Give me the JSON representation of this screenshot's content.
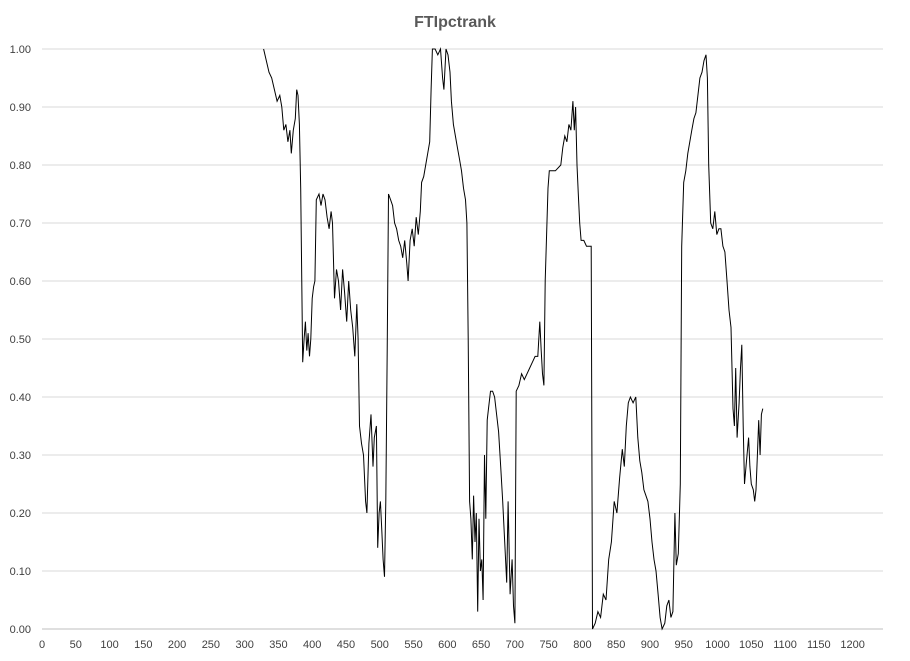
{
  "chart_data": {
    "type": "line",
    "title": "FTIpctrank",
    "xlabel": "",
    "ylabel": "",
    "xlim": [
      0,
      1245
    ],
    "ylim": [
      0,
      1
    ],
    "grid": true,
    "legend": "none",
    "x_ticks": [
      "0",
      "50",
      "100",
      "150",
      "200",
      "250",
      "300",
      "350",
      "400",
      "450",
      "500",
      "550",
      "600",
      "650",
      "700",
      "750",
      "800",
      "850",
      "900",
      "950",
      "1000",
      "1050",
      "1100",
      "1150",
      "1200"
    ],
    "y_ticks": [
      "0.00",
      "0.10",
      "0.20",
      "0.30",
      "0.40",
      "0.50",
      "0.60",
      "0.70",
      "0.80",
      "0.90",
      "1.00"
    ],
    "series": [
      {
        "color": "#000000",
        "points": [
          [
            328,
            1.0
          ],
          [
            332,
            0.98
          ],
          [
            336,
            0.96
          ],
          [
            340,
            0.95
          ],
          [
            344,
            0.93
          ],
          [
            348,
            0.91
          ],
          [
            352,
            0.92
          ],
          [
            355,
            0.9
          ],
          [
            358,
            0.86
          ],
          [
            361,
            0.87
          ],
          [
            364,
            0.84
          ],
          [
            367,
            0.86
          ],
          [
            369,
            0.82
          ],
          [
            372,
            0.86
          ],
          [
            375,
            0.88
          ],
          [
            377,
            0.93
          ],
          [
            379,
            0.92
          ],
          [
            381,
            0.87
          ],
          [
            383,
            0.76
          ],
          [
            385,
            0.55
          ],
          [
            386,
            0.46
          ],
          [
            388,
            0.5
          ],
          [
            390,
            0.53
          ],
          [
            392,
            0.48
          ],
          [
            394,
            0.51
          ],
          [
            396,
            0.47
          ],
          [
            398,
            0.5
          ],
          [
            400,
            0.57
          ],
          [
            402,
            0.59
          ],
          [
            404,
            0.6
          ],
          [
            406,
            0.74
          ],
          [
            410,
            0.75
          ],
          [
            413,
            0.73
          ],
          [
            416,
            0.75
          ],
          [
            419,
            0.74
          ],
          [
            422,
            0.71
          ],
          [
            425,
            0.69
          ],
          [
            428,
            0.72
          ],
          [
            430,
            0.7
          ],
          [
            433,
            0.57
          ],
          [
            436,
            0.62
          ],
          [
            439,
            0.6
          ],
          [
            442,
            0.55
          ],
          [
            445,
            0.62
          ],
          [
            448,
            0.58
          ],
          [
            451,
            0.53
          ],
          [
            454,
            0.6
          ],
          [
            457,
            0.55
          ],
          [
            460,
            0.52
          ],
          [
            463,
            0.47
          ],
          [
            466,
            0.56
          ],
          [
            468,
            0.5
          ],
          [
            470,
            0.35
          ],
          [
            473,
            0.32
          ],
          [
            476,
            0.3
          ],
          [
            479,
            0.22
          ],
          [
            481,
            0.2
          ],
          [
            484,
            0.32
          ],
          [
            487,
            0.37
          ],
          [
            490,
            0.28
          ],
          [
            492,
            0.33
          ],
          [
            495,
            0.35
          ],
          [
            497,
            0.14
          ],
          [
            499,
            0.2
          ],
          [
            501,
            0.22
          ],
          [
            503,
            0.17
          ],
          [
            505,
            0.12
          ],
          [
            507,
            0.09
          ],
          [
            509,
            0.22
          ],
          [
            511,
            0.48
          ],
          [
            513,
            0.75
          ],
          [
            516,
            0.74
          ],
          [
            519,
            0.73
          ],
          [
            522,
            0.7
          ],
          [
            525,
            0.69
          ],
          [
            528,
            0.67
          ],
          [
            531,
            0.66
          ],
          [
            534,
            0.64
          ],
          [
            537,
            0.67
          ],
          [
            540,
            0.63
          ],
          [
            542,
            0.6
          ],
          [
            545,
            0.67
          ],
          [
            548,
            0.69
          ],
          [
            551,
            0.66
          ],
          [
            554,
            0.71
          ],
          [
            557,
            0.68
          ],
          [
            560,
            0.72
          ],
          [
            562,
            0.77
          ],
          [
            565,
            0.78
          ],
          [
            568,
            0.8
          ],
          [
            571,
            0.82
          ],
          [
            574,
            0.84
          ],
          [
            576,
            0.93
          ],
          [
            578,
            1.0
          ],
          [
            582,
            1.0
          ],
          [
            586,
            0.99
          ],
          [
            590,
            1.0
          ],
          [
            593,
            0.95
          ],
          [
            595,
            0.93
          ],
          [
            598,
            1.0
          ],
          [
            601,
            0.99
          ],
          [
            604,
            0.96
          ],
          [
            606,
            0.91
          ],
          [
            609,
            0.87
          ],
          [
            612,
            0.85
          ],
          [
            615,
            0.83
          ],
          [
            618,
            0.81
          ],
          [
            621,
            0.79
          ],
          [
            624,
            0.76
          ],
          [
            627,
            0.74
          ],
          [
            629,
            0.7
          ],
          [
            631,
            0.5
          ],
          [
            633,
            0.22
          ],
          [
            635,
            0.19
          ],
          [
            637,
            0.12
          ],
          [
            639,
            0.23
          ],
          [
            641,
            0.15
          ],
          [
            643,
            0.2
          ],
          [
            645,
            0.03
          ],
          [
            647,
            0.19
          ],
          [
            649,
            0.1
          ],
          [
            651,
            0.12
          ],
          [
            653,
            0.05
          ],
          [
            655,
            0.3
          ],
          [
            657,
            0.19
          ],
          [
            659,
            0.36
          ],
          [
            661,
            0.38
          ],
          [
            664,
            0.41
          ],
          [
            667,
            0.41
          ],
          [
            670,
            0.4
          ],
          [
            673,
            0.37
          ],
          [
            676,
            0.34
          ],
          [
            679,
            0.28
          ],
          [
            682,
            0.22
          ],
          [
            685,
            0.15
          ],
          [
            688,
            0.08
          ],
          [
            690,
            0.22
          ],
          [
            693,
            0.06
          ],
          [
            696,
            0.12
          ],
          [
            698,
            0.04
          ],
          [
            700,
            0.01
          ],
          [
            702,
            0.41
          ],
          [
            706,
            0.42
          ],
          [
            710,
            0.44
          ],
          [
            714,
            0.43
          ],
          [
            718,
            0.44
          ],
          [
            722,
            0.45
          ],
          [
            726,
            0.46
          ],
          [
            730,
            0.47
          ],
          [
            734,
            0.47
          ],
          [
            737,
            0.53
          ],
          [
            739,
            0.48
          ],
          [
            741,
            0.44
          ],
          [
            743,
            0.42
          ],
          [
            745,
            0.6
          ],
          [
            747,
            0.68
          ],
          [
            749,
            0.76
          ],
          [
            751,
            0.79
          ],
          [
            760,
            0.79
          ],
          [
            768,
            0.8
          ],
          [
            771,
            0.83
          ],
          [
            774,
            0.85
          ],
          [
            777,
            0.84
          ],
          [
            780,
            0.87
          ],
          [
            783,
            0.86
          ],
          [
            786,
            0.91
          ],
          [
            788,
            0.86
          ],
          [
            790,
            0.9
          ],
          [
            792,
            0.8
          ],
          [
            794,
            0.75
          ],
          [
            796,
            0.7
          ],
          [
            798,
            0.67
          ],
          [
            802,
            0.67
          ],
          [
            806,
            0.66
          ],
          [
            810,
            0.66
          ],
          [
            813,
            0.66
          ],
          [
            815,
            0.0
          ],
          [
            819,
            0.01
          ],
          [
            823,
            0.03
          ],
          [
            827,
            0.02
          ],
          [
            831,
            0.06
          ],
          [
            835,
            0.05
          ],
          [
            839,
            0.12
          ],
          [
            843,
            0.15
          ],
          [
            847,
            0.22
          ],
          [
            851,
            0.2
          ],
          [
            855,
            0.26
          ],
          [
            859,
            0.31
          ],
          [
            862,
            0.28
          ],
          [
            865,
            0.35
          ],
          [
            868,
            0.39
          ],
          [
            871,
            0.4
          ],
          [
            875,
            0.39
          ],
          [
            879,
            0.4
          ],
          [
            882,
            0.33
          ],
          [
            885,
            0.29
          ],
          [
            888,
            0.27
          ],
          [
            891,
            0.24
          ],
          [
            894,
            0.23
          ],
          [
            897,
            0.22
          ],
          [
            900,
            0.19
          ],
          [
            903,
            0.15
          ],
          [
            906,
            0.12
          ],
          [
            909,
            0.1
          ],
          [
            912,
            0.06
          ],
          [
            915,
            0.02
          ],
          [
            918,
            0.0
          ],
          [
            922,
            0.01
          ],
          [
            925,
            0.04
          ],
          [
            928,
            0.05
          ],
          [
            931,
            0.02
          ],
          [
            934,
            0.03
          ],
          [
            937,
            0.2
          ],
          [
            939,
            0.11
          ],
          [
            942,
            0.13
          ],
          [
            945,
            0.25
          ],
          [
            947,
            0.66
          ],
          [
            950,
            0.77
          ],
          [
            953,
            0.79
          ],
          [
            956,
            0.82
          ],
          [
            959,
            0.84
          ],
          [
            962,
            0.86
          ],
          [
            965,
            0.88
          ],
          [
            968,
            0.89
          ],
          [
            971,
            0.92
          ],
          [
            974,
            0.95
          ],
          [
            977,
            0.96
          ],
          [
            980,
            0.98
          ],
          [
            983,
            0.99
          ],
          [
            985,
            0.95
          ],
          [
            987,
            0.8
          ],
          [
            990,
            0.7
          ],
          [
            993,
            0.69
          ],
          [
            996,
            0.72
          ],
          [
            999,
            0.68
          ],
          [
            1002,
            0.69
          ],
          [
            1005,
            0.69
          ],
          [
            1008,
            0.66
          ],
          [
            1011,
            0.65
          ],
          [
            1014,
            0.6
          ],
          [
            1017,
            0.55
          ],
          [
            1020,
            0.52
          ],
          [
            1023,
            0.38
          ],
          [
            1025,
            0.35
          ],
          [
            1027,
            0.45
          ],
          [
            1029,
            0.33
          ],
          [
            1032,
            0.39
          ],
          [
            1034,
            0.45
          ],
          [
            1036,
            0.49
          ],
          [
            1038,
            0.35
          ],
          [
            1040,
            0.25
          ],
          [
            1043,
            0.29
          ],
          [
            1046,
            0.33
          ],
          [
            1048,
            0.28
          ],
          [
            1050,
            0.25
          ],
          [
            1053,
            0.24
          ],
          [
            1055,
            0.22
          ],
          [
            1057,
            0.24
          ],
          [
            1059,
            0.3
          ],
          [
            1061,
            0.36
          ],
          [
            1063,
            0.3
          ],
          [
            1065,
            0.37
          ],
          [
            1067,
            0.38
          ]
        ]
      }
    ]
  }
}
